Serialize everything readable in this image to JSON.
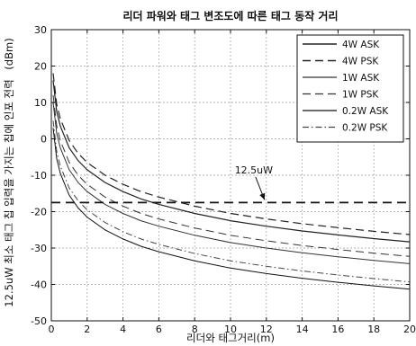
{
  "chart_data": {
    "type": "line",
    "title": "리더 파워와 태그 변조도에 따른 태그 동작 거리",
    "xlabel": "리더와 태그거리(m)",
    "ylabel": "12.5uW 최소 태그 칩 입력을 가지는 칩에 인포 전력",
    "ylabel_unit": "(dBm)",
    "xlim": [
      0,
      20
    ],
    "ylim": [
      -50,
      30
    ],
    "x_ticks": [
      0,
      2,
      4,
      6,
      8,
      10,
      12,
      14,
      16,
      18,
      20
    ],
    "y_ticks": [
      -50,
      -40,
      -30,
      -20,
      -10,
      0,
      10,
      20,
      30
    ],
    "grid": true,
    "legend_position": "top-right",
    "x": [
      0.1,
      0.3,
      0.5,
      1,
      1.5,
      2,
      3,
      4,
      5,
      6,
      8,
      10,
      12,
      14,
      16,
      18,
      20
    ],
    "series": [
      {
        "name": "4W ASK",
        "style": "solid",
        "width": 1.2,
        "color": "#222222",
        "values": [
          16,
          7.5,
          3.5,
          -2.5,
          -6,
          -8.5,
          -12,
          -14.5,
          -16.5,
          -18,
          -20.5,
          -22.5,
          -24,
          -25.3,
          -26.4,
          -27.4,
          -28.3
        ]
      },
      {
        "name": "4W PSK",
        "style": "dash",
        "width": 1.2,
        "color": "#222222",
        "values": [
          18,
          9.5,
          5.5,
          -0.5,
          -4,
          -6.5,
          -10,
          -12.5,
          -14.5,
          -16,
          -18.5,
          -20.5,
          -22,
          -23.3,
          -24.4,
          -25.4,
          -26.3
        ]
      },
      {
        "name": "1W ASK",
        "style": "solid",
        "width": 1.0,
        "color": "#333333",
        "values": [
          10,
          1.5,
          -2.5,
          -8.5,
          -12,
          -14.5,
          -18,
          -20.5,
          -22.5,
          -24,
          -26.5,
          -28.5,
          -30,
          -31.3,
          -32.4,
          -33.4,
          -34.3
        ]
      },
      {
        "name": "1W PSK",
        "style": "dash",
        "width": 1.0,
        "color": "#333333",
        "values": [
          12,
          3.5,
          -0.5,
          -6.5,
          -10,
          -12.5,
          -16,
          -18.5,
          -20.5,
          -22,
          -24.5,
          -26.5,
          -28,
          -29.3,
          -30.4,
          -31.4,
          -32.3
        ]
      },
      {
        "name": "0.2W ASK",
        "style": "solid",
        "width": 1.0,
        "color": "#111111",
        "values": [
          3,
          -5.5,
          -9.5,
          -15.5,
          -19,
          -21.5,
          -25,
          -27.5,
          -29.5,
          -31,
          -33.5,
          -35.5,
          -37,
          -38.3,
          -39.4,
          -40.4,
          -41.3
        ]
      },
      {
        "name": "0.2W PSK",
        "style": "dashdot",
        "width": 1.0,
        "color": "#444444",
        "values": [
          5,
          -3.5,
          -7.5,
          -13.5,
          -17,
          -19.5,
          -23,
          -25.5,
          -27.5,
          -29,
          -31.5,
          -33.5,
          -35,
          -36.3,
          -37.4,
          -38.4,
          -39.3
        ]
      }
    ],
    "threshold": {
      "y": -17.5,
      "style": "dash"
    },
    "annotation": {
      "text": "12.5uW",
      "target": [
        12,
        -17.5
      ],
      "text_at": [
        11.3,
        -9.5
      ]
    }
  }
}
